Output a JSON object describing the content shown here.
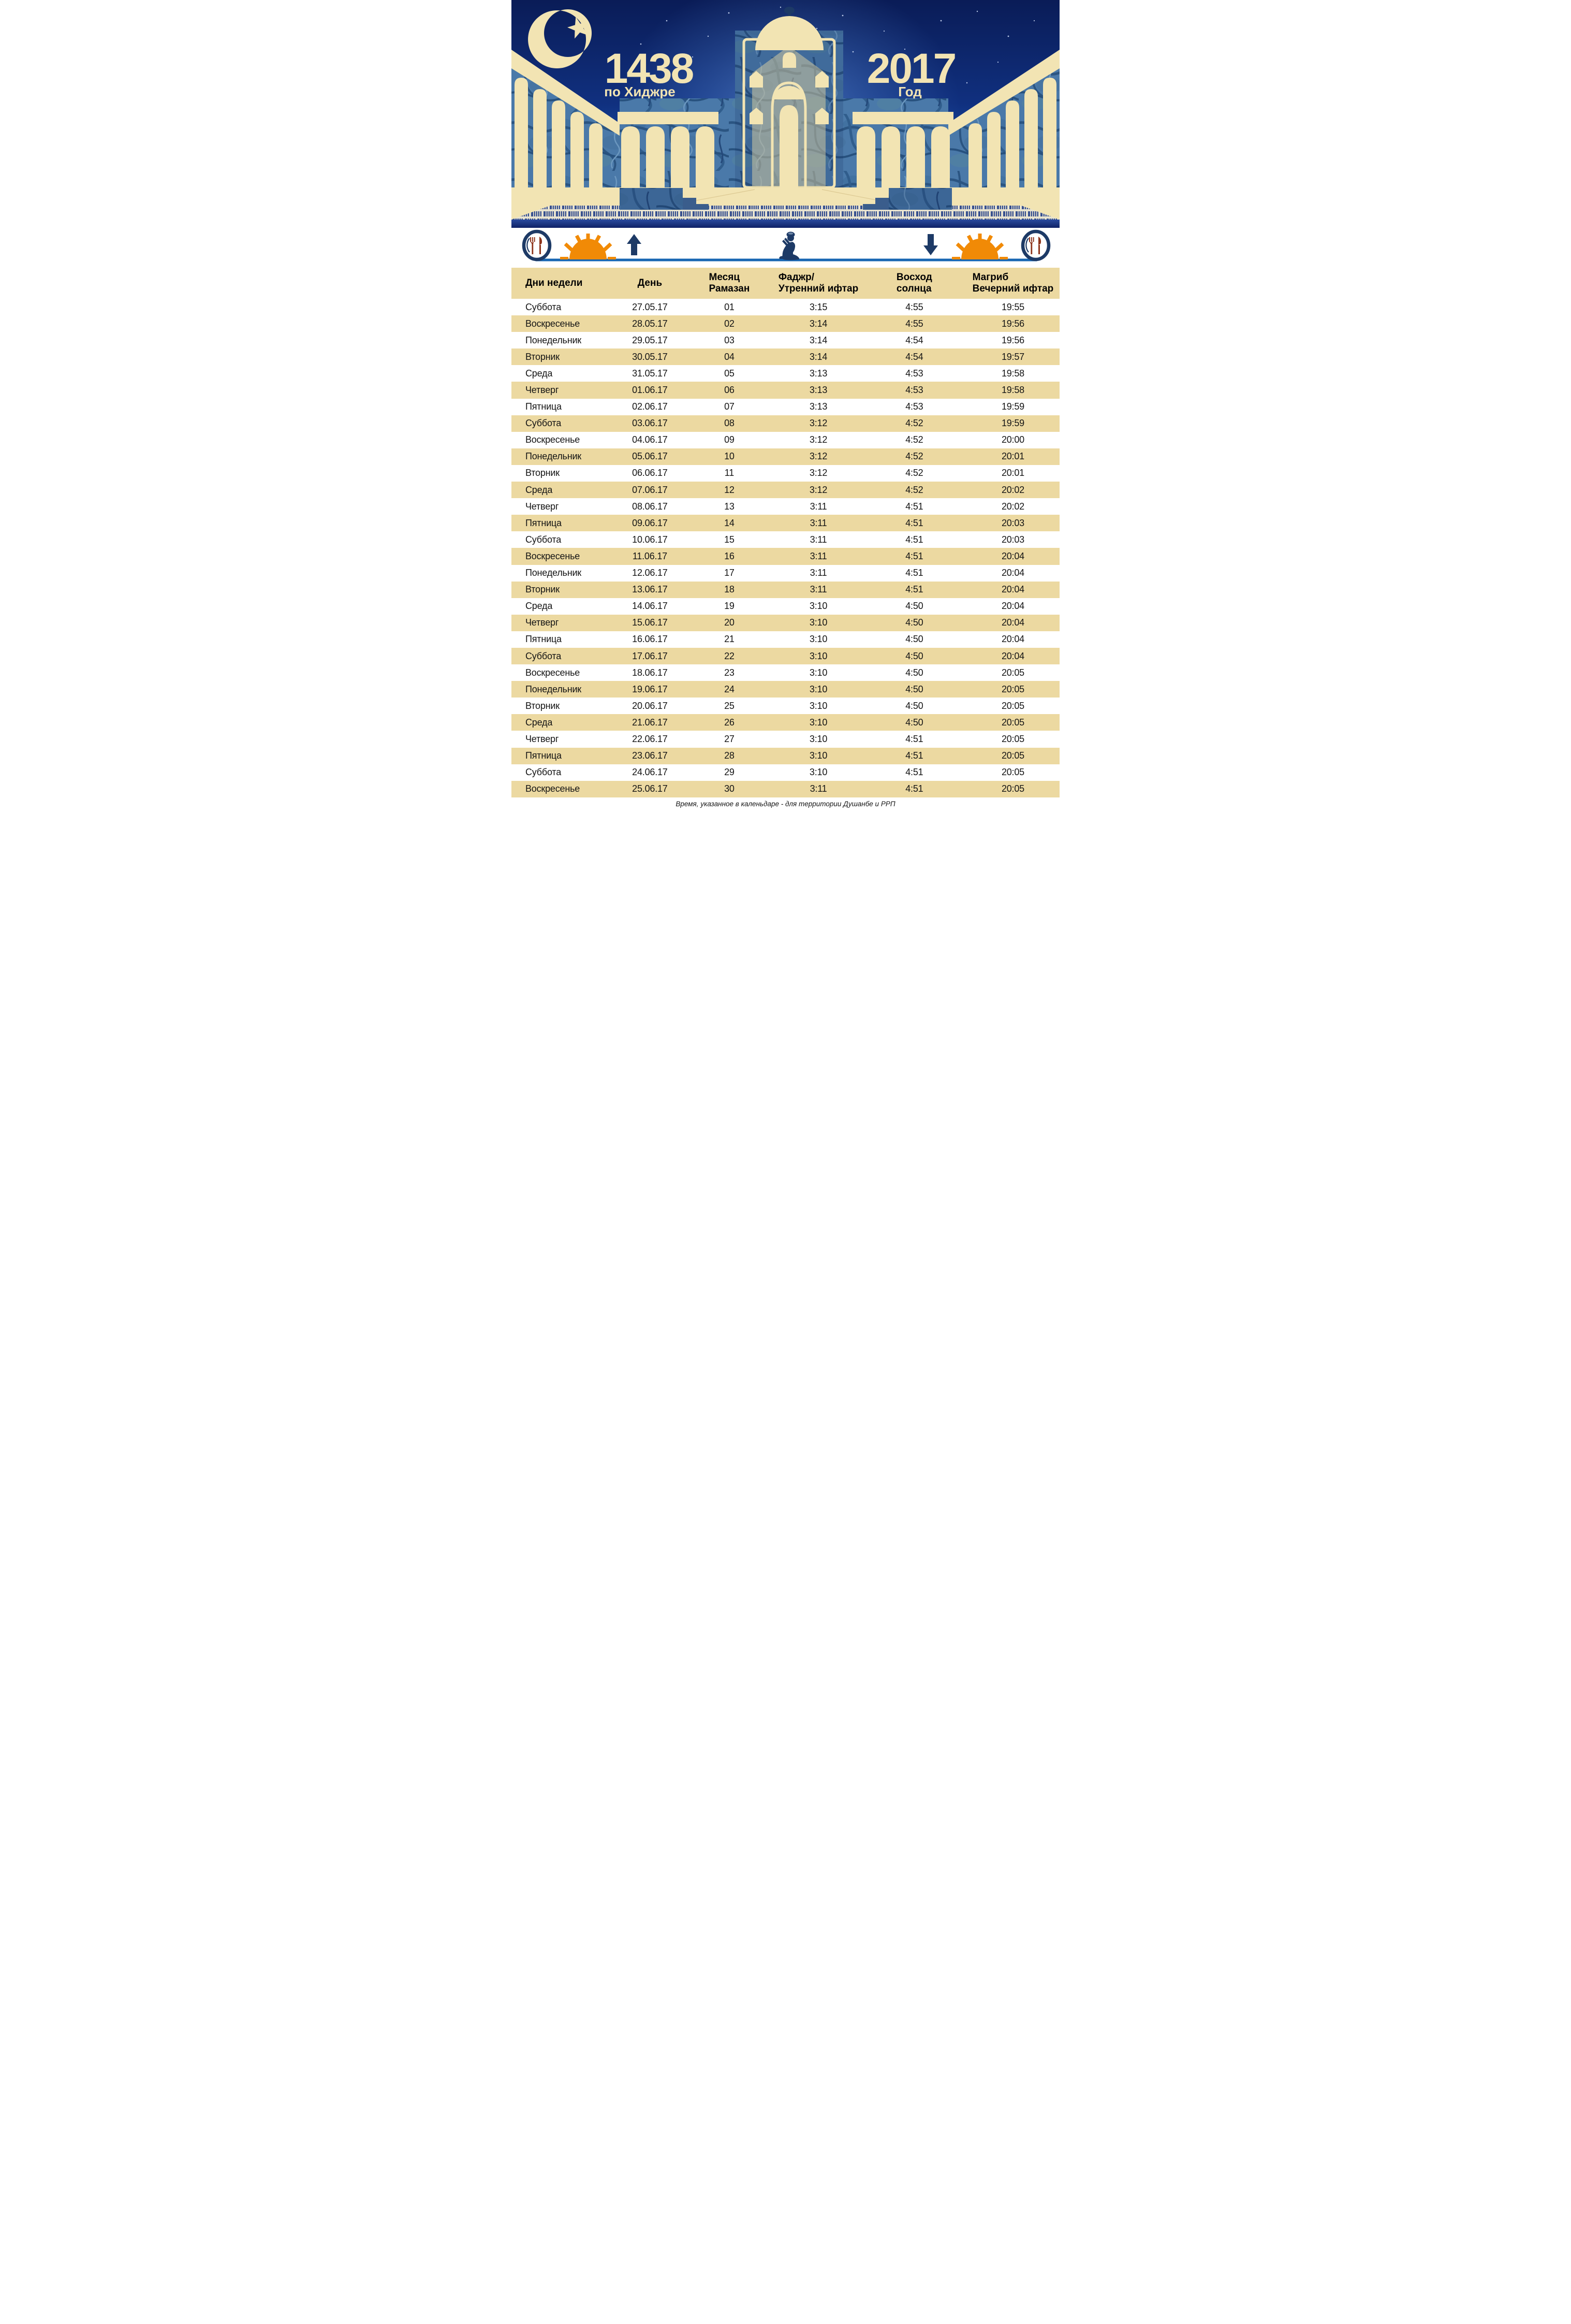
{
  "header": {
    "hijri_year": "1438",
    "hijri_caption": "по Хиджре",
    "gregorian_year": "2017",
    "gregorian_caption": "Год"
  },
  "legend": {
    "icons": [
      "plate-fork-knife-icon",
      "sunrise-sun-icon",
      "arrow-up-icon",
      "praying-person-icon",
      "arrow-down-icon",
      "sunset-sun-icon",
      "plate-fork-knife-icon"
    ]
  },
  "table": {
    "columns": [
      {
        "line1": "Дни недели",
        "line2": ""
      },
      {
        "line1": "День",
        "line2": ""
      },
      {
        "line1": "Месяц",
        "line2": "Рамазан"
      },
      {
        "line1": "Фаджр/",
        "line2": "Утренний ифтар"
      },
      {
        "line1": "Восход",
        "line2": "солнца"
      },
      {
        "line1": "Магриб",
        "line2": "Вечерний ифтар"
      }
    ],
    "rows": [
      [
        "Суббота",
        "27.05.17",
        "01",
        "3:15",
        "4:55",
        "19:55"
      ],
      [
        "Воскресенье",
        "28.05.17",
        "02",
        "3:14",
        "4:55",
        "19:56"
      ],
      [
        "Понедельник",
        "29.05.17",
        "03",
        "3:14",
        "4:54",
        "19:56"
      ],
      [
        "Вторник",
        "30.05.17",
        "04",
        "3:14",
        "4:54",
        "19:57"
      ],
      [
        "Среда",
        "31.05.17",
        "05",
        "3:13",
        "4:53",
        "19:58"
      ],
      [
        "Четверг",
        "01.06.17",
        "06",
        "3:13",
        "4:53",
        "19:58"
      ],
      [
        "Пятница",
        "02.06.17",
        "07",
        "3:13",
        "4:53",
        "19:59"
      ],
      [
        "Суббота",
        "03.06.17",
        "08",
        "3:12",
        "4:52",
        "19:59"
      ],
      [
        "Воскресенье",
        "04.06.17",
        "09",
        "3:12",
        "4:52",
        "20:00"
      ],
      [
        "Понедельник",
        "05.06.17",
        "10",
        "3:12",
        "4:52",
        "20:01"
      ],
      [
        "Вторник",
        "06.06.17",
        "11",
        "3:12",
        "4:52",
        "20:01"
      ],
      [
        "Среда",
        "07.06.17",
        "12",
        "3:12",
        "4:52",
        "20:02"
      ],
      [
        "Четверг",
        "08.06.17",
        "13",
        "3:11",
        "4:51",
        "20:02"
      ],
      [
        "Пятница",
        "09.06.17",
        "14",
        "3:11",
        "4:51",
        "20:03"
      ],
      [
        "Суббота",
        "10.06.17",
        "15",
        "3:11",
        "4:51",
        "20:03"
      ],
      [
        "Воскресенье",
        "11.06.17",
        "16",
        "3:11",
        "4:51",
        "20:04"
      ],
      [
        "Понедельник",
        "12.06.17",
        "17",
        "3:11",
        "4:51",
        "20:04"
      ],
      [
        "Вторник",
        "13.06.17",
        "18",
        "3:11",
        "4:51",
        "20:04"
      ],
      [
        "Среда",
        "14.06.17",
        "19",
        "3:10",
        "4:50",
        "20:04"
      ],
      [
        "Четверг",
        "15.06.17",
        "20",
        "3:10",
        "4:50",
        "20:04"
      ],
      [
        "Пятница",
        "16.06.17",
        "21",
        "3:10",
        "4:50",
        "20:04"
      ],
      [
        "Суббота",
        "17.06.17",
        "22",
        "3:10",
        "4:50",
        "20:04"
      ],
      [
        "Воскресенье",
        "18.06.17",
        "23",
        "3:10",
        "4:50",
        "20:05"
      ],
      [
        "Понедельник",
        "19.06.17",
        "24",
        "3:10",
        "4:50",
        "20:05"
      ],
      [
        "Вторник",
        "20.06.17",
        "25",
        "3:10",
        "4:50",
        "20:05"
      ],
      [
        "Среда",
        "21.06.17",
        "26",
        "3:10",
        "4:50",
        "20:05"
      ],
      [
        "Четверг",
        "22.06.17",
        "27",
        "3:10",
        "4:51",
        "20:05"
      ],
      [
        "Пятница",
        "23.06.17",
        "28",
        "3:10",
        "4:51",
        "20:05"
      ],
      [
        "Суббота",
        "24.06.17",
        "29",
        "3:10",
        "4:51",
        "20:05"
      ],
      [
        "Воскресенье",
        "25.06.17",
        "30",
        "3:11",
        "4:51",
        "20:05"
      ]
    ]
  },
  "footer": {
    "note": "Время, указанное в каленьдаре - для территории Душанбе и РРП"
  },
  "colors": {
    "cream": "#f2e4b3",
    "tan_row": "#ecd9a1",
    "navy": "#1d3a66",
    "sky_top": "#0a1c57",
    "sky_glow": "#2f6fca",
    "wall_steel": "#4a79a9",
    "wall_vein": "#2b5582",
    "sun_orange": "#f18a06",
    "cutlery_maroon": "#8e351c",
    "timeline_blue": "#1766b2",
    "base_strip": "#16276e"
  }
}
